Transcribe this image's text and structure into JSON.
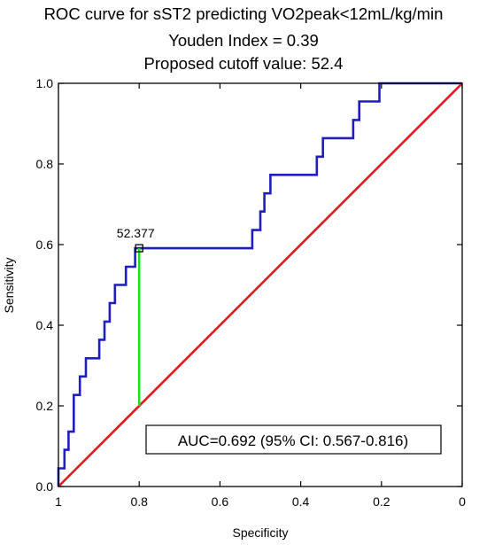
{
  "header": {
    "title": "ROC curve for sST2 predicting VO2peak<12mL/kg/min",
    "subtitle1": "Youden Index  = 0.39",
    "subtitle2": "Proposed cutoff value: 52.4"
  },
  "chart_data": {
    "type": "line",
    "title": "ROC curve for sST2 predicting VO2peak<12mL/kg/min",
    "xlabel": "Specificity",
    "ylabel": "Sensitivity",
    "xlim": [
      1,
      0
    ],
    "ylim": [
      0,
      1
    ],
    "x_reversed": true,
    "grid": false,
    "x_ticks": [
      1,
      0.8,
      0.6,
      0.4,
      0.2,
      0
    ],
    "x_tick_labels": [
      "1",
      "0.8",
      "0.6",
      "0.4",
      "0.2",
      "0"
    ],
    "y_ticks": [
      0,
      0.2,
      0.4,
      0.6,
      0.8,
      1
    ],
    "y_tick_labels": [
      "0.0",
      "0.2",
      "0.4",
      "0.6",
      "0.8",
      "1.0"
    ],
    "series": [
      {
        "color": "#1f1fbf",
        "points": [
          [
            1.0,
            0.0
          ],
          [
            1.0,
            0.045
          ],
          [
            0.985,
            0.045
          ],
          [
            0.985,
            0.091
          ],
          [
            0.975,
            0.091
          ],
          [
            0.975,
            0.136
          ],
          [
            0.962,
            0.136
          ],
          [
            0.962,
            0.227
          ],
          [
            0.947,
            0.227
          ],
          [
            0.947,
            0.273
          ],
          [
            0.932,
            0.273
          ],
          [
            0.932,
            0.318
          ],
          [
            0.899,
            0.318
          ],
          [
            0.899,
            0.364
          ],
          [
            0.886,
            0.364
          ],
          [
            0.886,
            0.409
          ],
          [
            0.873,
            0.409
          ],
          [
            0.873,
            0.455
          ],
          [
            0.86,
            0.455
          ],
          [
            0.86,
            0.5
          ],
          [
            0.833,
            0.5
          ],
          [
            0.833,
            0.545
          ],
          [
            0.81,
            0.545
          ],
          [
            0.81,
            0.591
          ],
          [
            0.52,
            0.591
          ],
          [
            0.52,
            0.636
          ],
          [
            0.5,
            0.636
          ],
          [
            0.5,
            0.682
          ],
          [
            0.49,
            0.682
          ],
          [
            0.49,
            0.727
          ],
          [
            0.475,
            0.727
          ],
          [
            0.475,
            0.773
          ],
          [
            0.36,
            0.773
          ],
          [
            0.36,
            0.818
          ],
          [
            0.345,
            0.818
          ],
          [
            0.345,
            0.864
          ],
          [
            0.27,
            0.864
          ],
          [
            0.27,
            0.909
          ],
          [
            0.255,
            0.909
          ],
          [
            0.255,
            0.955
          ],
          [
            0.205,
            0.955
          ],
          [
            0.205,
            1.0
          ],
          [
            0.0,
            1.0
          ]
        ]
      },
      {
        "color": "#e01b1b",
        "points": [
          [
            1.0,
            0.0
          ],
          [
            0.0,
            1.0
          ]
        ]
      }
    ],
    "youden_segment": {
      "color": "#22dd22",
      "points": [
        [
          0.8,
          0.2
        ],
        [
          0.8,
          0.591
        ]
      ]
    },
    "cutoff_marker": {
      "x": 0.8,
      "y": 0.591,
      "label": "52.377"
    },
    "annotations": [
      "AUC=0.692 (95% CI: 0.567-0.816)"
    ]
  }
}
